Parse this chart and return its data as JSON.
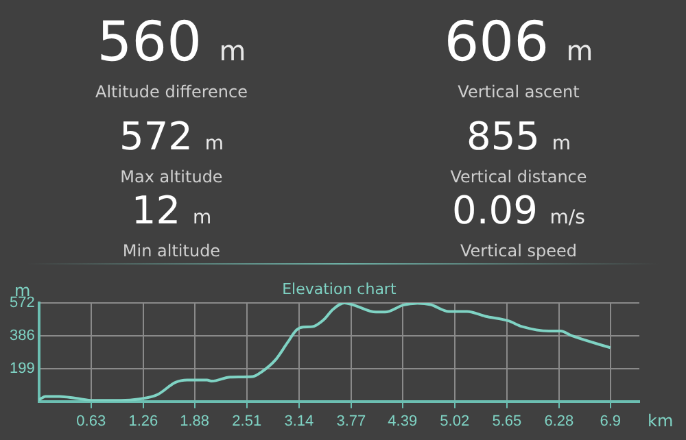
{
  "chart_data": [
    {
      "type": "other",
      "annotations": [
        "560 m",
        "Altitude difference",
        "606 m",
        "Vertical ascent",
        "572 m",
        "Max altitude",
        "855 m",
        "Vertical distance",
        "12 m",
        "Min altitude",
        "0.09 m/s",
        "Vertical speed"
      ]
    },
    {
      "type": "line",
      "title": "Elevation chart",
      "xlabel": "km",
      "ylabel": "m",
      "color": "#7fd3c4",
      "grid": true,
      "legend": false,
      "marker": "none",
      "x": [
        0,
        0.08,
        0.25,
        0.44,
        0.66,
        0.99,
        1.21,
        1.43,
        1.65,
        1.79,
        2.03,
        2.09,
        2.31,
        2.58,
        2.69,
        2.86,
        3.0,
        3.11,
        3.19,
        3.3,
        3.44,
        3.55,
        3.69,
        3.8,
        4.07,
        4.18,
        4.4,
        4.57,
        4.73,
        4.95,
        5.17,
        5.39,
        5.67,
        5.83,
        6.16,
        6.3,
        6.43,
        6.9
      ],
      "values": [
        20,
        40,
        40,
        30,
        17,
        17,
        25,
        50,
        120,
        133,
        133,
        127,
        150,
        153,
        180,
        250,
        345,
        418,
        435,
        437,
        477,
        535,
        572,
        560,
        520,
        520,
        560,
        570,
        562,
        523,
        523,
        496,
        470,
        438,
        412,
        412,
        386,
        317
      ],
      "xlim": [
        0,
        7.25
      ],
      "xticks": [
        0.63,
        1.26,
        1.88,
        2.51,
        3.14,
        3.77,
        4.39,
        5.02,
        5.65,
        6.28,
        6.9
      ],
      "ylim": [
        12,
        572
      ],
      "yticks": [
        199,
        386,
        572
      ]
    }
  ]
}
